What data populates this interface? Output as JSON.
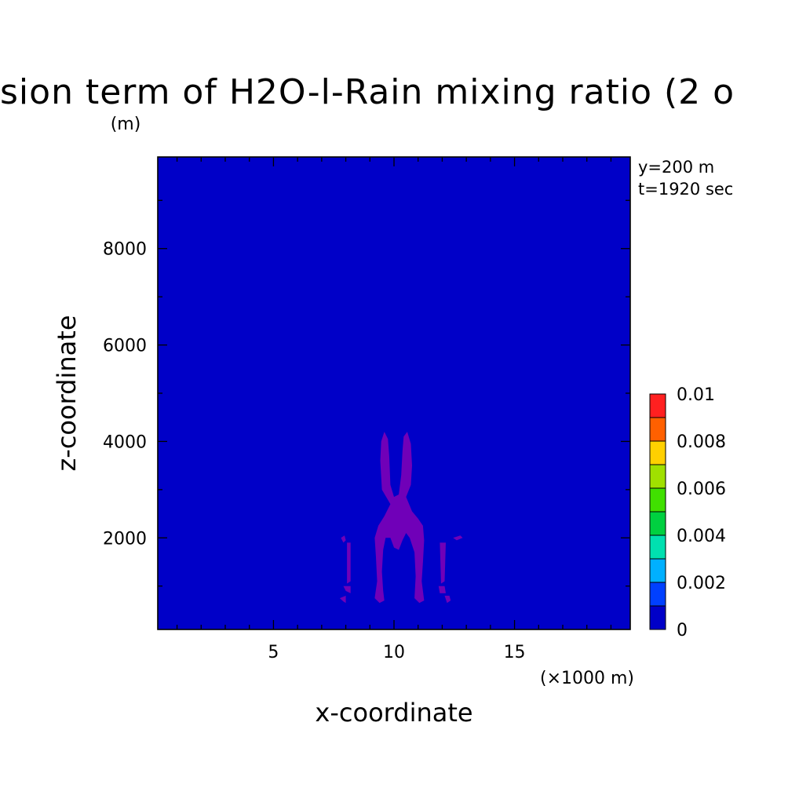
{
  "chart_data": {
    "type": "heatmap",
    "title": "sion term of H2O-l-Rain mixing ratio (2 o",
    "xlabel": "x-coordinate",
    "ylabel": "z-coordinate",
    "y_unit": "(m)",
    "x_unit": "(×1000 m)",
    "annotations": [
      "y=200 m",
      "t=1920 sec"
    ],
    "xlim": [
      0.2,
      19.8
    ],
    "ylim": [
      100,
      9900
    ],
    "x_ticks": [
      {
        "value": 5,
        "label": "5"
      },
      {
        "value": 10,
        "label": "10"
      },
      {
        "value": 15,
        "label": "15"
      }
    ],
    "y_ticks": [
      {
        "value": 2000,
        "label": "2000"
      },
      {
        "value": 4000,
        "label": "4000"
      },
      {
        "value": 6000,
        "label": "6000"
      },
      {
        "value": 8000,
        "label": "8000"
      }
    ],
    "background_color": "#0000c8",
    "feature_color": "#7000b8",
    "colorbar": {
      "min": 0,
      "max": 0.01,
      "colors": [
        "#0000c8",
        "#0040ff",
        "#00b0ff",
        "#00e0b0",
        "#00d040",
        "#40e000",
        "#a0e000",
        "#ffd000",
        "#ff6000",
        "#ff2020"
      ],
      "labels": [
        {
          "value": 0,
          "label": "0"
        },
        {
          "value": 0.002,
          "label": "0.002"
        },
        {
          "value": 0.004,
          "label": "0.004"
        },
        {
          "value": 0.006,
          "label": "0.006"
        },
        {
          "value": 0.008,
          "label": "0.008"
        },
        {
          "value": 0.01,
          "label": "0.01"
        }
      ]
    },
    "feature_shapes": [
      [
        [
          9.5,
          3000
        ],
        [
          9.43,
          3600
        ],
        [
          9.47,
          4000
        ],
        [
          9.6,
          4200
        ],
        [
          9.75,
          4050
        ],
        [
          9.8,
          3700
        ],
        [
          9.85,
          3100
        ],
        [
          10.0,
          2850
        ],
        [
          10.2,
          2900
        ],
        [
          10.3,
          3300
        ],
        [
          10.35,
          3800
        ],
        [
          10.4,
          4100
        ],
        [
          10.55,
          4200
        ],
        [
          10.7,
          3950
        ],
        [
          10.75,
          3500
        ],
        [
          10.7,
          3100
        ],
        [
          10.5,
          2850
        ],
        [
          10.75,
          2550
        ],
        [
          11.0,
          2400
        ],
        [
          11.2,
          2250
        ],
        [
          11.25,
          1950
        ],
        [
          11.2,
          1500
        ],
        [
          11.15,
          1100
        ],
        [
          11.25,
          700
        ],
        [
          11.05,
          650
        ],
        [
          10.85,
          750
        ],
        [
          10.9,
          1200
        ],
        [
          10.85,
          1700
        ],
        [
          10.65,
          2000
        ],
        [
          10.5,
          2100
        ],
        [
          10.35,
          1950
        ],
        [
          10.2,
          1750
        ],
        [
          10.0,
          1800
        ],
        [
          9.85,
          2000
        ],
        [
          9.65,
          2000
        ],
        [
          9.55,
          1750
        ],
        [
          9.5,
          1300
        ],
        [
          9.55,
          900
        ],
        [
          9.6,
          700
        ],
        [
          9.4,
          650
        ],
        [
          9.2,
          750
        ],
        [
          9.3,
          1100
        ],
        [
          9.25,
          1600
        ],
        [
          9.2,
          2000
        ],
        [
          9.35,
          2250
        ],
        [
          9.6,
          2450
        ],
        [
          9.85,
          2700
        ]
      ],
      [
        [
          7.8,
          2000
        ],
        [
          7.95,
          2050
        ],
        [
          8.0,
          1950
        ],
        [
          7.9,
          1900
        ]
      ],
      [
        [
          8.05,
          1900
        ],
        [
          8.2,
          1900
        ],
        [
          8.2,
          1100
        ],
        [
          8.05,
          1050
        ]
      ],
      [
        [
          7.9,
          1000
        ],
        [
          8.2,
          1000
        ],
        [
          8.2,
          850
        ],
        [
          8.0,
          900
        ]
      ],
      [
        [
          7.75,
          750
        ],
        [
          8.0,
          800
        ],
        [
          8.0,
          650
        ],
        [
          7.9,
          680
        ]
      ],
      [
        [
          10.1,
          2100
        ],
        [
          10.25,
          2100
        ],
        [
          10.2,
          1950
        ]
      ],
      [
        [
          11.9,
          1900
        ],
        [
          12.15,
          1900
        ],
        [
          12.1,
          1100
        ],
        [
          11.95,
          1050
        ]
      ],
      [
        [
          11.85,
          1000
        ],
        [
          12.1,
          1000
        ],
        [
          12.15,
          850
        ],
        [
          11.9,
          850
        ]
      ],
      [
        [
          12.45,
          2000
        ],
        [
          12.75,
          2050
        ],
        [
          12.85,
          2000
        ],
        [
          12.6,
          1950
        ]
      ],
      [
        [
          12.1,
          800
        ],
        [
          12.3,
          800
        ],
        [
          12.35,
          700
        ],
        [
          12.2,
          650
        ]
      ]
    ]
  }
}
